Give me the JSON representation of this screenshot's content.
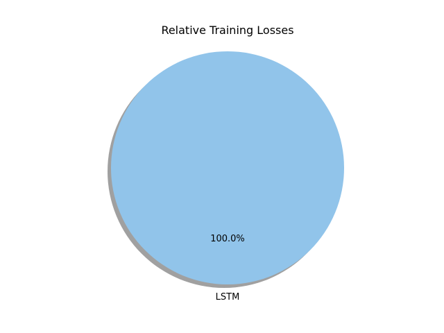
{
  "chart_data": {
    "type": "pie",
    "title": "Relative Training Losses",
    "labels": [
      "LSTM"
    ],
    "values": [
      100.0
    ],
    "percent_labels": [
      "100.0%"
    ],
    "colors": [
      "#91c4ea"
    ],
    "shadow": true
  }
}
